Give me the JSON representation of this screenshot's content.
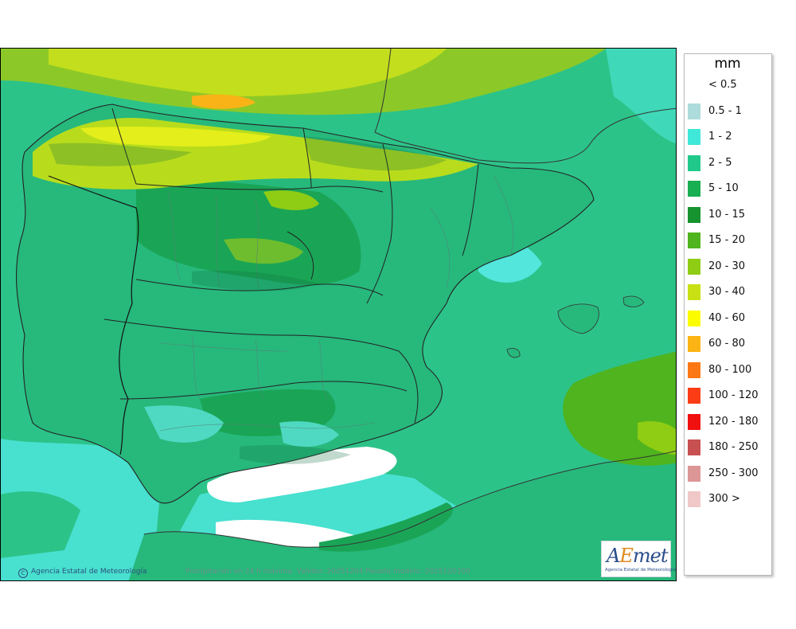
{
  "map": {
    "caption": "Precipitación en 24 h máxima. Validez: 20251204 Pasada modelo: 2025120300",
    "credit": "Agencia Estatal de Meteorología",
    "credit_icon": "copyright-icon",
    "logo": {
      "word_a": "A",
      "word_e": "E",
      "word_rest": "met",
      "subtitle": "Agencia Estatal de Meteorología"
    }
  },
  "legend": {
    "unit": "mm",
    "items": [
      {
        "label": "< 0.5",
        "color": "#ffffff"
      },
      {
        "label": "0.5 - 1",
        "color": "#aedcdc"
      },
      {
        "label": "1 - 2",
        "color": "#3fe8d8"
      },
      {
        "label": "2 - 5",
        "color": "#20c98a"
      },
      {
        "label": "5 - 10",
        "color": "#18ae52"
      },
      {
        "label": "10 - 15",
        "color": "#16922e"
      },
      {
        "label": "15 - 20",
        "color": "#4fb41e"
      },
      {
        "label": "20 - 30",
        "color": "#8fcc14"
      },
      {
        "label": "30 - 40",
        "color": "#c8e014"
      },
      {
        "label": "40 - 60",
        "color": "#fcfc00"
      },
      {
        "label": "60 - 80",
        "color": "#fcb414"
      },
      {
        "label": "80 - 100",
        "color": "#fc7814"
      },
      {
        "label": "100 - 120",
        "color": "#fc3c14"
      },
      {
        "label": "120 - 180",
        "color": "#f01010"
      },
      {
        "label": "180 - 250",
        "color": "#c85050"
      },
      {
        "label": "250 - 300",
        "color": "#dc9696"
      },
      {
        "label": "300 >",
        "color": "#f0c8c8"
      }
    ]
  }
}
